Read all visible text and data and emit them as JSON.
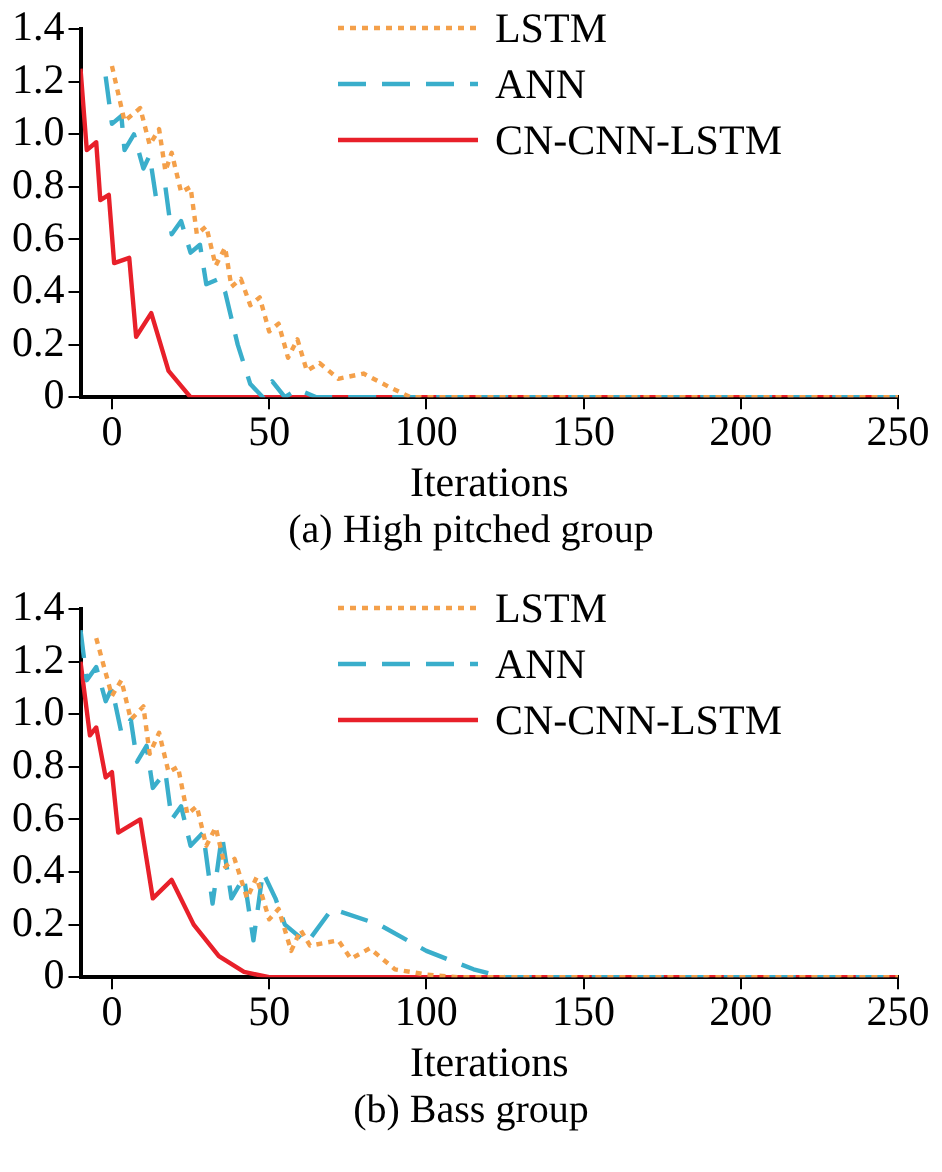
{
  "chart_data": [
    {
      "type": "line",
      "xlabel": "Iterations",
      "annotations": [
        "(a) High pitched group"
      ],
      "xlim": [
        -10,
        250
      ],
      "xticks": [
        0,
        50,
        100,
        150,
        200,
        250
      ],
      "ylim": [
        0,
        1.4
      ],
      "yticks": [
        0,
        0.2,
        0.4,
        0.6,
        0.8,
        {
          "value": 1,
          "label": "1.0"
        },
        1.2,
        1.4
      ],
      "grid": false,
      "legend": "top right",
      "marker": "none",
      "series": [
        {
          "name": "LSTM",
          "color": "#f4a04a",
          "line_style": "dotted",
          "x": [
            0,
            4,
            9,
            12,
            15,
            17,
            19,
            22,
            25,
            27,
            30,
            33,
            36,
            38,
            41,
            44,
            47,
            50,
            53,
            56,
            59,
            62,
            66,
            72,
            80,
            88,
            95,
            250
          ],
          "values": [
            1.26,
            1.05,
            1.1,
            0.96,
            1.02,
            0.86,
            0.93,
            0.78,
            0.8,
            0.62,
            0.65,
            0.5,
            0.57,
            0.42,
            0.45,
            0.35,
            0.38,
            0.25,
            0.28,
            0.15,
            0.22,
            0.1,
            0.13,
            0.07,
            0.09,
            0.04,
            0,
            0
          ]
        },
        {
          "name": "ANN",
          "color": "#3aaecb",
          "line_style": "dashed",
          "x": [
            -2,
            0,
            3,
            4,
            7,
            10,
            12,
            14,
            17,
            19,
            22,
            25,
            28,
            30,
            34,
            36,
            40,
            44,
            48,
            51,
            55,
            59,
            65,
            250
          ],
          "values": [
            1.22,
            1.04,
            1.07,
            0.94,
            1,
            0.87,
            0.92,
            0.76,
            0.8,
            0.62,
            0.67,
            0.55,
            0.58,
            0.43,
            0.45,
            0.4,
            0.2,
            0.05,
            0,
            0.06,
            0,
            0.03,
            0,
            0
          ]
        },
        {
          "name": "CN-CNN-LSTM",
          "color": "#e8202a",
          "line_style": "solid",
          "x": [
            -10,
            -8,
            -5,
            -3.7,
            -1,
            0.7,
            5.5,
            7.7,
            12.5,
            18,
            25,
            250
          ],
          "values": [
            1.25,
            0.94,
            0.97,
            0.75,
            0.77,
            0.51,
            0.53,
            0.23,
            0.32,
            0.1,
            0,
            0
          ]
        }
      ]
    },
    {
      "type": "line",
      "xlabel": "Iterations",
      "annotations": [
        "(b) Bass group"
      ],
      "xlim": [
        -10,
        250
      ],
      "xticks": [
        0,
        50,
        100,
        150,
        200,
        250
      ],
      "ylim": [
        0,
        1.4
      ],
      "yticks": [
        0,
        0.2,
        0.4,
        0.6,
        0.8,
        {
          "value": 1,
          "label": "1.0"
        },
        1.2,
        1.4
      ],
      "grid": false,
      "legend": "top right",
      "marker": "none",
      "series": [
        {
          "name": "LSTM",
          "color": "#f4a04a",
          "line_style": "dotted",
          "x": [
            -5,
            0,
            3,
            6,
            10,
            12,
            15,
            18,
            21,
            24,
            27,
            30,
            33,
            36,
            39,
            43,
            46,
            50,
            53,
            57,
            60,
            63,
            72,
            76,
            82,
            90,
            100,
            110,
            250
          ],
          "values": [
            1.29,
            1.07,
            1.13,
            0.98,
            1.03,
            0.85,
            0.93,
            0.78,
            0.8,
            0.62,
            0.65,
            0.5,
            0.57,
            0.42,
            0.45,
            0.3,
            0.38,
            0.22,
            0.26,
            0.1,
            0.18,
            0.12,
            0.14,
            0.07,
            0.11,
            0.03,
            0.01,
            0,
            0
          ]
        },
        {
          "name": "ANN",
          "color": "#3aaecb",
          "line_style": "dashed",
          "x": [
            -10,
            -8,
            -5,
            -2,
            0,
            3,
            6,
            8,
            11,
            13,
            17,
            19,
            22,
            25,
            29,
            32,
            35,
            38,
            42,
            45,
            48,
            52,
            55,
            62,
            70,
            85,
            100,
            115,
            125,
            250
          ],
          "values": [
            1.32,
            1.13,
            1.18,
            1.05,
            1.1,
            0.93,
            0.98,
            0.82,
            0.88,
            0.72,
            0.78,
            0.6,
            0.65,
            0.5,
            0.55,
            0.28,
            0.54,
            0.3,
            0.38,
            0.14,
            0.4,
            0.3,
            0.2,
            0.13,
            0.26,
            0.2,
            0.1,
            0.03,
            0,
            0
          ]
        },
        {
          "name": "CN-CNN-LSTM",
          "color": "#e8202a",
          "line_style": "solid",
          "x": [
            -10,
            -7,
            -5,
            -2,
            0,
            2,
            9,
            13,
            19,
            26,
            34,
            42,
            50,
            250
          ],
          "values": [
            1.2,
            0.92,
            0.95,
            0.76,
            0.78,
            0.55,
            0.6,
            0.3,
            0.37,
            0.2,
            0.08,
            0.02,
            0,
            0
          ]
        }
      ]
    }
  ]
}
